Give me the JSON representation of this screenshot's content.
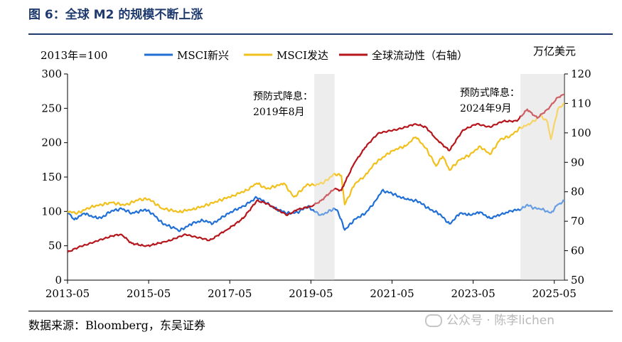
{
  "title": "图 6：全球 M2 的规模不断上涨",
  "source": "数据来源：Bloomberg，东吴证券",
  "watermark": "公众号 · 陈李lichen",
  "chart_data": {
    "type": "line",
    "left_axis_label": "2013年=100",
    "right_axis_label": "万亿美元",
    "ylim_left": [
      0,
      300
    ],
    "yticks_left": [
      0,
      50,
      100,
      150,
      200,
      250,
      300
    ],
    "ylim_right": [
      50,
      120
    ],
    "yticks_right": [
      50,
      60,
      70,
      80,
      90,
      100,
      110,
      120
    ],
    "xlim": [
      "2013-05",
      "2025-08"
    ],
    "xticks": [
      "2013-05",
      "2015-05",
      "2017-05",
      "2019-05",
      "2021-05",
      "2023-05",
      "2025-05"
    ],
    "grid": false,
    "legend_placement": "top",
    "shaded_periods": [
      {
        "start": "2019-06",
        "end": "2019-12",
        "label_line1": "预防式降息：",
        "label_line2": "2019年8月"
      },
      {
        "start": "2024-07",
        "end": "2025-08",
        "label_line1": "预防式降息：",
        "label_line2": "2024年9月"
      }
    ],
    "series": [
      {
        "name": "MSCI新兴",
        "axis": "left",
        "color": "#1f6fd6",
        "points": [
          [
            "2013-05",
            100
          ],
          [
            "2013-07",
            88
          ],
          [
            "2013-10",
            97
          ],
          [
            "2014-01",
            92
          ],
          [
            "2014-03",
            90
          ],
          [
            "2014-06",
            101
          ],
          [
            "2014-09",
            104
          ],
          [
            "2014-12",
            97
          ],
          [
            "2015-04",
            103
          ],
          [
            "2015-06",
            97
          ],
          [
            "2015-09",
            83
          ],
          [
            "2016-01",
            75
          ],
          [
            "2016-02",
            71
          ],
          [
            "2016-06",
            83
          ],
          [
            "2016-09",
            87
          ],
          [
            "2016-12",
            82
          ],
          [
            "2017-03",
            93
          ],
          [
            "2017-06",
            100
          ],
          [
            "2017-09",
            108
          ],
          [
            "2018-01",
            120
          ],
          [
            "2018-04",
            112
          ],
          [
            "2018-07",
            103
          ],
          [
            "2018-10",
            97
          ],
          [
            "2019-01",
            99
          ],
          [
            "2019-04",
            107
          ],
          [
            "2019-06",
            100
          ],
          [
            "2019-08",
            95
          ],
          [
            "2019-12",
            104
          ],
          [
            "2020-01",
            100
          ],
          [
            "2020-03",
            73
          ],
          [
            "2020-06",
            89
          ],
          [
            "2020-09",
            96
          ],
          [
            "2020-12",
            115
          ],
          [
            "2021-02",
            130
          ],
          [
            "2021-05",
            126
          ],
          [
            "2021-09",
            118
          ],
          [
            "2022-01",
            114
          ],
          [
            "2022-04",
            104
          ],
          [
            "2022-07",
            96
          ],
          [
            "2022-10",
            82
          ],
          [
            "2023-01",
            97
          ],
          [
            "2023-04",
            95
          ],
          [
            "2023-07",
            99
          ],
          [
            "2023-10",
            90
          ],
          [
            "2024-01",
            95
          ],
          [
            "2024-04",
            101
          ],
          [
            "2024-07",
            102
          ],
          [
            "2024-09",
            110
          ],
          [
            "2024-11",
            105
          ],
          [
            "2025-01",
            103
          ],
          [
            "2025-04",
            98
          ],
          [
            "2025-06",
            110
          ],
          [
            "2025-08",
            115
          ]
        ]
      },
      {
        "name": "MSCI发达",
        "axis": "left",
        "color": "#f2c01c",
        "points": [
          [
            "2013-05",
            100
          ],
          [
            "2013-08",
            98
          ],
          [
            "2013-12",
            107
          ],
          [
            "2014-06",
            113
          ],
          [
            "2014-10",
            109
          ],
          [
            "2015-02",
            117
          ],
          [
            "2015-05",
            118
          ],
          [
            "2015-09",
            104
          ],
          [
            "2016-02",
            99
          ],
          [
            "2016-06",
            103
          ],
          [
            "2016-09",
            107
          ],
          [
            "2017-01",
            114
          ],
          [
            "2017-06",
            123
          ],
          [
            "2017-10",
            131
          ],
          [
            "2018-01",
            141
          ],
          [
            "2018-04",
            133
          ],
          [
            "2018-09",
            141
          ],
          [
            "2018-12",
            121
          ],
          [
            "2019-04",
            140
          ],
          [
            "2019-06",
            138
          ],
          [
            "2019-09",
            143
          ],
          [
            "2019-12",
            155
          ],
          [
            "2020-02",
            152
          ],
          [
            "2020-03",
            110
          ],
          [
            "2020-06",
            140
          ],
          [
            "2020-09",
            152
          ],
          [
            "2020-12",
            170
          ],
          [
            "2021-05",
            188
          ],
          [
            "2021-09",
            195
          ],
          [
            "2021-12",
            208
          ],
          [
            "2022-03",
            192
          ],
          [
            "2022-06",
            166
          ],
          [
            "2022-08",
            180
          ],
          [
            "2022-10",
            160
          ],
          [
            "2023-01",
            175
          ],
          [
            "2023-04",
            182
          ],
          [
            "2023-07",
            195
          ],
          [
            "2023-10",
            183
          ],
          [
            "2024-01",
            205
          ],
          [
            "2024-04",
            210
          ],
          [
            "2024-07",
            222
          ],
          [
            "2024-10",
            228
          ],
          [
            "2025-01",
            240
          ],
          [
            "2025-03",
            230
          ],
          [
            "2025-04",
            205
          ],
          [
            "2025-06",
            248
          ],
          [
            "2025-08",
            258
          ]
        ]
      },
      {
        "name": "全球流动性（右轴）",
        "axis": "right",
        "color": "#b5161c",
        "points": [
          [
            "2013-05",
            59.5
          ],
          [
            "2013-09",
            61.5
          ],
          [
            "2014-01",
            63
          ],
          [
            "2014-06",
            65
          ],
          [
            "2014-09",
            65.5
          ],
          [
            "2014-12",
            62.5
          ],
          [
            "2015-04",
            61.5
          ],
          [
            "2015-10",
            63
          ],
          [
            "2016-04",
            65.5
          ],
          [
            "2016-11",
            63.5
          ],
          [
            "2017-04",
            67
          ],
          [
            "2017-09",
            71
          ],
          [
            "2018-01",
            77
          ],
          [
            "2018-04",
            76
          ],
          [
            "2018-10",
            72
          ],
          [
            "2019-01",
            74
          ],
          [
            "2019-05",
            75
          ],
          [
            "2019-08",
            77
          ],
          [
            "2019-12",
            81
          ],
          [
            "2020-02",
            80.5
          ],
          [
            "2020-03",
            83
          ],
          [
            "2020-06",
            90
          ],
          [
            "2020-09",
            95
          ],
          [
            "2021-01",
            100
          ],
          [
            "2021-06",
            101
          ],
          [
            "2021-12",
            103
          ],
          [
            "2022-03",
            102
          ],
          [
            "2022-06",
            98
          ],
          [
            "2022-10",
            94
          ],
          [
            "2023-02",
            101
          ],
          [
            "2023-06",
            103
          ],
          [
            "2023-10",
            102
          ],
          [
            "2024-02",
            104
          ],
          [
            "2024-06",
            104
          ],
          [
            "2024-09",
            108
          ],
          [
            "2024-12",
            105
          ],
          [
            "2025-03",
            108
          ],
          [
            "2025-06",
            112
          ],
          [
            "2025-08",
            113
          ]
        ]
      }
    ]
  }
}
